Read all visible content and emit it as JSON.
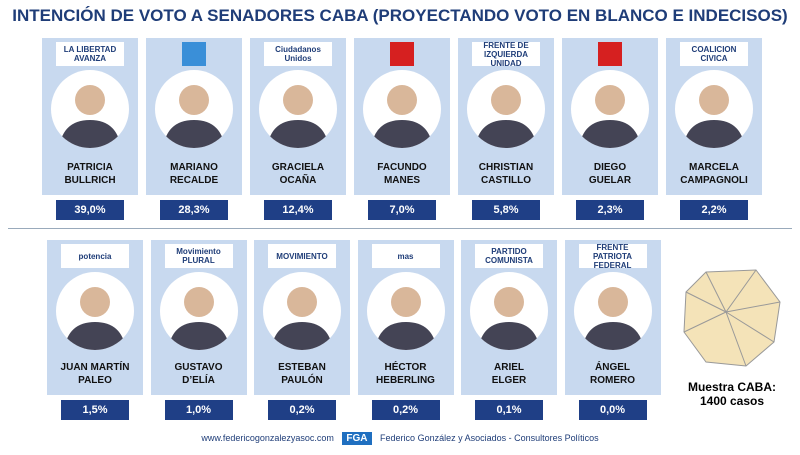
{
  "header": {
    "title": "INTENCIÓN DE VOTO A SENADORES CABA (PROYECTANDO VOTO EN BLANCO E INDECISOS)"
  },
  "rows": [
    [
      {
        "logo": "LA LIBERTAD AVANZA",
        "first": "PATRICIA",
        "last": "BULLRICH",
        "value": "39,0%"
      },
      {
        "first": "MARIANO",
        "last": "RECALDE",
        "value": "28,3%"
      },
      {
        "logo": "Ciudadanos Unidos",
        "first": "GRACIELA",
        "last": "OCAÑA",
        "value": "12,4%"
      },
      {
        "first": "FACUNDO",
        "last": "MANES",
        "value": "7,0%"
      },
      {
        "logo": "FRENTE DE IZQUIERDA UNIDAD",
        "first": "CHRISTIAN",
        "last": "CASTILLO",
        "value": "5,8%"
      },
      {
        "first": "DIEGO",
        "last": "GUELAR",
        "value": "2,3%"
      },
      {
        "logo": "COALICION CIVICA",
        "first": "MARCELA",
        "last": "CAMPAGNOLI",
        "value": "2,2%"
      }
    ],
    [
      {
        "logo": "potencia",
        "first": "JUAN MARTÍN",
        "last": "PALEO",
        "value": "1,5%"
      },
      {
        "logo": "Movimiento PLURAL",
        "first": "GUSTAVO",
        "last": "D’ELÍA",
        "value": "1,0%"
      },
      {
        "logo": "MOVIMIENTO",
        "first": "ESTEBAN",
        "last": "PAULÓN",
        "value": "0,2%"
      },
      {
        "logo": "mas",
        "first": "HÉCTOR",
        "last": "HEBERLING",
        "value": "0,2%"
      },
      {
        "logo": "PARTIDO COMUNISTA",
        "first": "ARIEL",
        "last": "ELGER",
        "value": "0,1%"
      },
      {
        "logo": "FRENTE PATRIOTA FEDERAL",
        "first": "ÁNGEL",
        "last": "ROMERO",
        "value": "0,0%"
      }
    ]
  ],
  "sample": {
    "line1": "Muestra CABA:",
    "line2": "1400 casos"
  },
  "footer": {
    "url": "www.federicogonzalezyasoc.com",
    "brand": "FGA",
    "company": "Federico González y Asociados - Consultores Políticos"
  }
}
